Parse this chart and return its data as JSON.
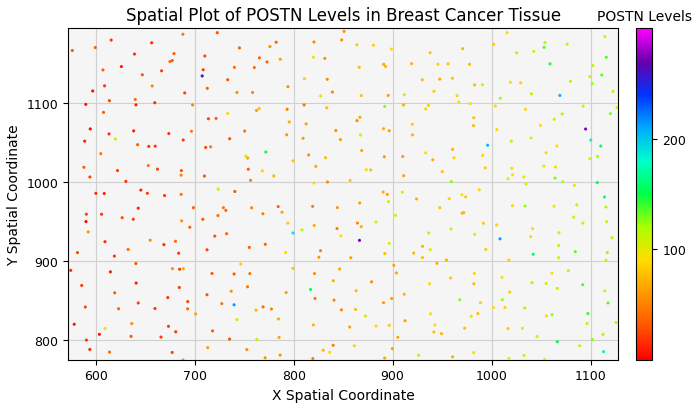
{
  "title": "Spatial Plot of POSTN Levels in Breast Cancer Tissue",
  "xlabel": "X Spatial Coordinate",
  "ylabel": "Y Spatial Coordinate",
  "xlim": [
    572,
    1128
  ],
  "ylim": [
    775,
    1195
  ],
  "xticks": [
    600,
    700,
    800,
    900,
    1000,
    1100
  ],
  "yticks": [
    800,
    900,
    1000,
    1100
  ],
  "colorbar_label": "POSTN Levels",
  "colorbar_ticks": [
    100,
    200
  ],
  "vmin": 0,
  "vmax": 300,
  "grid_color": "#d0d0d0",
  "bg_color": "#f5f5f5",
  "fig_bg": "#ffffff",
  "point_size": 5,
  "seed": 42,
  "nx": 22,
  "ny": 20,
  "x_range": [
    590,
    1115
  ],
  "y_range": [
    785,
    1175
  ],
  "jitter": 8,
  "title_fontsize": 12,
  "axis_fontsize": 10,
  "tick_fontsize": 9
}
